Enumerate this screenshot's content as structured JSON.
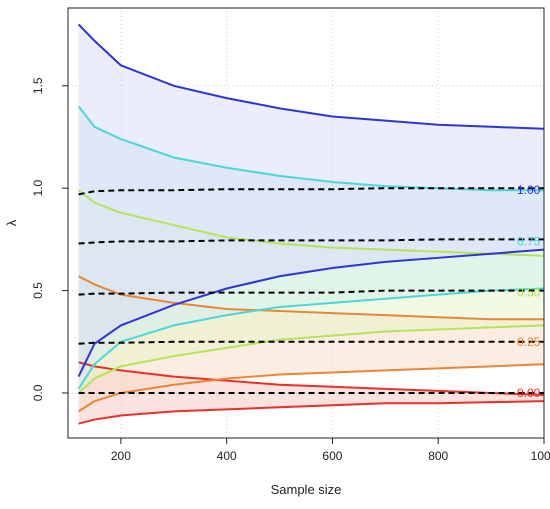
{
  "chart_data": {
    "type": "line",
    "title": "",
    "xlabel": "Sample size",
    "ylabel": "λ",
    "xlim": [
      100,
      1000
    ],
    "ylim": [
      -0.22,
      1.88
    ],
    "xticks": [
      200,
      400,
      600,
      800,
      1000
    ],
    "yticks": [
      0.0,
      0.5,
      1.0,
      1.5
    ],
    "grid": true,
    "bands": [
      {
        "level": "0.00",
        "color": "#e8312c",
        "fill": "#f5c6c0",
        "true_value": 0.0,
        "upper": {
          "x": [
            120,
            150,
            200,
            300,
            400,
            500,
            600,
            700,
            800,
            900,
            1000
          ],
          "y": [
            0.15,
            0.13,
            0.11,
            0.08,
            0.06,
            0.04,
            0.03,
            0.02,
            0.01,
            0.0,
            -0.01
          ]
        },
        "lower": {
          "x": [
            120,
            150,
            200,
            300,
            400,
            500,
            600,
            700,
            800,
            900,
            1000
          ],
          "y": [
            -0.15,
            -0.13,
            -0.11,
            -0.09,
            -0.08,
            -0.07,
            -0.06,
            -0.05,
            -0.05,
            -0.045,
            -0.04
          ]
        }
      },
      {
        "level": "0.25",
        "color": "#e8873a",
        "fill": "#f8dcc4",
        "true_value": 0.25,
        "upper": {
          "x": [
            120,
            150,
            200,
            300,
            400,
            500,
            600,
            700,
            800,
            900,
            1000
          ],
          "y": [
            0.57,
            0.53,
            0.48,
            0.44,
            0.41,
            0.4,
            0.39,
            0.38,
            0.37,
            0.36,
            0.36
          ]
        },
        "lower": {
          "x": [
            120,
            150,
            200,
            300,
            400,
            500,
            600,
            700,
            800,
            900,
            1000
          ],
          "y": [
            -0.09,
            -0.04,
            0.0,
            0.04,
            0.07,
            0.09,
            0.1,
            0.11,
            0.12,
            0.13,
            0.14
          ]
        }
      },
      {
        "level": "0.50",
        "color": "#b5e35a",
        "fill": "#e6f6c8",
        "true_value": 0.49,
        "upper": {
          "x": [
            120,
            150,
            200,
            300,
            400,
            500,
            600,
            700,
            800,
            900,
            1000
          ],
          "y": [
            0.99,
            0.93,
            0.88,
            0.82,
            0.76,
            0.73,
            0.71,
            0.7,
            0.69,
            0.68,
            0.67
          ]
        },
        "lower": {
          "x": [
            120,
            150,
            200,
            300,
            400,
            500,
            600,
            700,
            800,
            900,
            1000
          ],
          "y": [
            0.0,
            0.07,
            0.13,
            0.18,
            0.22,
            0.26,
            0.28,
            0.3,
            0.31,
            0.32,
            0.33
          ]
        }
      },
      {
        "level": "0.75",
        "color": "#4dd6d6",
        "fill": "#cfeef2",
        "true_value": 0.74,
        "upper": {
          "x": [
            120,
            150,
            200,
            300,
            400,
            500,
            600,
            700,
            800,
            900,
            1000
          ],
          "y": [
            1.4,
            1.3,
            1.24,
            1.15,
            1.1,
            1.06,
            1.03,
            1.01,
            1.0,
            0.99,
            0.99
          ]
        },
        "lower": {
          "x": [
            120,
            150,
            200,
            300,
            400,
            500,
            600,
            700,
            800,
            900,
            1000
          ],
          "y": [
            0.02,
            0.14,
            0.25,
            0.33,
            0.38,
            0.42,
            0.44,
            0.46,
            0.48,
            0.5,
            0.51
          ]
        }
      },
      {
        "level": "1.00",
        "color": "#2b35d8",
        "fill": "#d7d9fa",
        "true_value": 0.99,
        "upper": {
          "x": [
            120,
            150,
            200,
            300,
            400,
            500,
            600,
            700,
            800,
            900,
            1000
          ],
          "y": [
            1.8,
            1.72,
            1.6,
            1.5,
            1.44,
            1.39,
            1.35,
            1.33,
            1.31,
            1.3,
            1.29
          ]
        },
        "lower": {
          "x": [
            120,
            150,
            200,
            300,
            400,
            500,
            600,
            700,
            800,
            900,
            1000
          ],
          "y": [
            0.08,
            0.24,
            0.33,
            0.43,
            0.51,
            0.57,
            0.61,
            0.64,
            0.66,
            0.68,
            0.7
          ]
        }
      }
    ],
    "true_value_lines": {
      "style": "dashed",
      "color": "#000000",
      "x": [
        120,
        150,
        200,
        300,
        400,
        500,
        600,
        700,
        800,
        900,
        1000
      ],
      "levels": [
        {
          "level": "0.00",
          "y": [
            0.0,
            0.0,
            0.0,
            0.0,
            0.0,
            0.0,
            0.0,
            0.0,
            0.0,
            0.0,
            0.0
          ]
        },
        {
          "level": "0.25",
          "y": [
            0.24,
            0.245,
            0.245,
            0.25,
            0.25,
            0.25,
            0.25,
            0.25,
            0.25,
            0.25,
            0.25
          ]
        },
        {
          "level": "0.50",
          "y": [
            0.48,
            0.485,
            0.485,
            0.49,
            0.49,
            0.49,
            0.49,
            0.5,
            0.5,
            0.5,
            0.5
          ]
        },
        {
          "level": "0.75",
          "y": [
            0.73,
            0.735,
            0.74,
            0.74,
            0.745,
            0.745,
            0.745,
            0.745,
            0.75,
            0.75,
            0.75
          ]
        },
        {
          "level": "1.00",
          "y": [
            0.97,
            0.985,
            0.99,
            0.99,
            0.995,
            0.995,
            0.995,
            1.0,
            1.0,
            1.0,
            1.0
          ]
        }
      ]
    },
    "annotations": [
      "0.00",
      "0.25",
      "0.50",
      "0.75",
      "1.00"
    ]
  }
}
